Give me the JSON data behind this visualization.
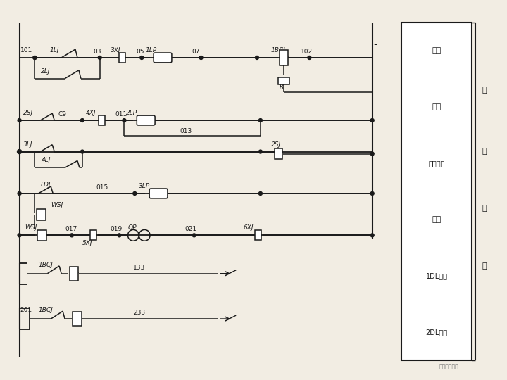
{
  "bg_color": "#f2ede3",
  "line_color": "#1a1a1a",
  "text_color": "#1a1a1a",
  "fig_width": 7.2,
  "fig_height": 5.4,
  "dpi": 100,
  "table_labels": [
    "速断",
    "过流",
    "零序过流",
    "瓦斯",
    "1DL跳闸",
    "2DL跳闸"
  ],
  "side_chars": [
    "保",
    "护",
    "回",
    "路"
  ],
  "watermark": "电力知识课堂"
}
